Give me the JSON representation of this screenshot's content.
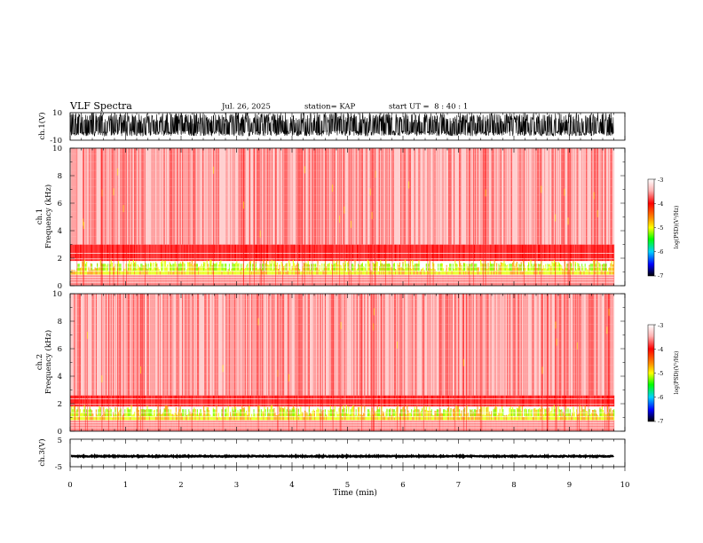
{
  "header": {
    "title": "VLF Spectra",
    "date": "Jul. 26, 2025",
    "station": "station= KAP",
    "start": "start UT =  8 : 40 : 1"
  },
  "chart_data": [
    {
      "type": "line",
      "name": "ch1-waveform",
      "ylabel": "ch.1(V)",
      "ylim": [
        -10,
        10
      ],
      "ytick_labels": [
        "10",
        "-10"
      ],
      "xlim": [
        0,
        10
      ],
      "data_extent_min": 9.8,
      "description": "dense broadband waveform oscillating mostly between about -7 V and +10 V"
    },
    {
      "type": "heatmap",
      "name": "ch1-spectrogram",
      "ylabel": "ch.1",
      "ylabel2": "Frequency (kHz)",
      "ylim": [
        0,
        10
      ],
      "ytick_labels": [
        "10",
        "8",
        "6",
        "4",
        "2",
        "0"
      ],
      "xlim": [
        0,
        10
      ],
      "data_extent_min": 9.8,
      "colorbar": {
        "label": "log(PSD)(V²/Hz)",
        "range": [
          -7,
          -3
        ],
        "tick_labels": [
          "-3",
          "-4",
          "-5",
          "-6",
          "-7"
        ]
      },
      "description": "broadband red noise, intense yellow-green band below ~3 kHz"
    },
    {
      "type": "heatmap",
      "name": "ch2-spectrogram",
      "ylabel": "ch.2",
      "ylabel2": "Frequency (kHz)",
      "ylim": [
        0,
        10
      ],
      "ytick_labels": [
        "10",
        "8",
        "6",
        "4",
        "2",
        "0"
      ],
      "xlim": [
        0,
        10
      ],
      "data_extent_min": 9.8,
      "colorbar": {
        "label": "log(PSD)(V²/Hz)",
        "range": [
          -7,
          -3
        ],
        "tick_labels": [
          "-3",
          "-4",
          "-5",
          "-6",
          "-7"
        ]
      },
      "description": "broadband red noise, intense yellow-green band below ~2.5 kHz"
    },
    {
      "type": "line",
      "name": "ch3-waveform",
      "ylabel": "ch.3(V)",
      "ylim": [
        -5,
        5
      ],
      "ytick_labels": [
        "5",
        "-5"
      ],
      "xlim": [
        0,
        10
      ],
      "level": -1.2,
      "data_extent_min": 9.8,
      "description": "nearly constant trace near -1.2 V"
    }
  ],
  "xaxis": {
    "label": "Time (min)",
    "tick_labels": [
      "0",
      "1",
      "2",
      "3",
      "4",
      "5",
      "6",
      "7",
      "8",
      "9",
      "10"
    ]
  }
}
